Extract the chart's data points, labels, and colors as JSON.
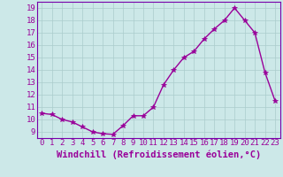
{
  "x": [
    0,
    1,
    2,
    3,
    4,
    5,
    6,
    7,
    8,
    9,
    10,
    11,
    12,
    13,
    14,
    15,
    16,
    17,
    18,
    19,
    20,
    21,
    22,
    23
  ],
  "y": [
    10.5,
    10.4,
    10.0,
    9.8,
    9.4,
    9.0,
    8.85,
    8.8,
    9.5,
    10.3,
    10.3,
    11.0,
    12.8,
    14.0,
    15.0,
    15.5,
    16.5,
    17.3,
    18.0,
    19.0,
    18.0,
    17.0,
    13.8,
    11.5
  ],
  "line_color": "#990099",
  "marker": "*",
  "marker_size": 4,
  "bg_color": "#cce8e8",
  "grid_color": "#aacccc",
  "xlabel": "Windchill (Refroidissement éolien,°C)",
  "ylim": [
    8.5,
    19.5
  ],
  "yticks": [
    9,
    10,
    11,
    12,
    13,
    14,
    15,
    16,
    17,
    18,
    19
  ],
  "xticks": [
    0,
    1,
    2,
    3,
    4,
    5,
    6,
    7,
    8,
    9,
    10,
    11,
    12,
    13,
    14,
    15,
    16,
    17,
    18,
    19,
    20,
    21,
    22,
    23
  ],
  "tick_fontsize": 6.5,
  "xlabel_fontsize": 7.5,
  "line_width": 1.0,
  "grid_linewidth": 0.5,
  "spine_color": "#7700aa",
  "xlim": [
    -0.5,
    23.5
  ]
}
